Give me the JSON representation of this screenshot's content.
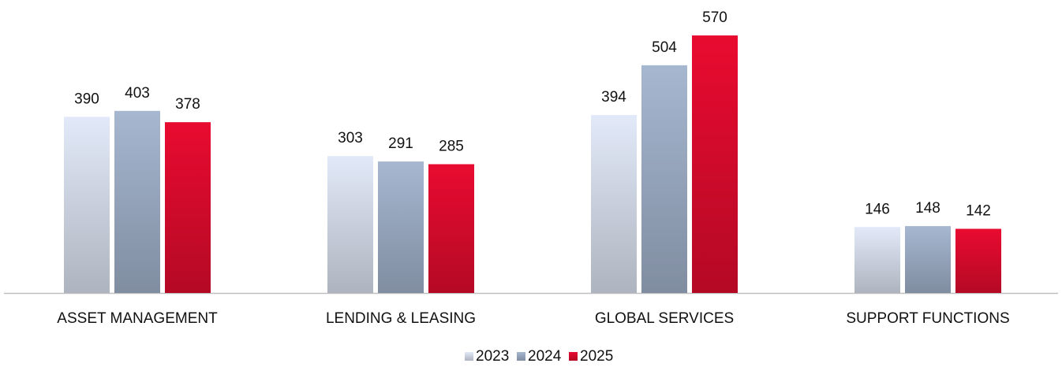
{
  "chart_data": {
    "type": "bar",
    "categories": [
      "ASSET MANAGEMENT",
      "LENDING & LEASING",
      "GLOBAL SERVICES",
      "SUPPORT FUNCTIONS"
    ],
    "series": [
      {
        "name": "2023",
        "color": "#cdd4e1",
        "values": [
          390,
          303,
          394,
          146
        ]
      },
      {
        "name": "2024",
        "color": "#97a6bd",
        "values": [
          403,
          291,
          504,
          148
        ]
      },
      {
        "name": "2025",
        "color": "#d40a2c",
        "values": [
          378,
          285,
          570,
          142
        ]
      }
    ]
  }
}
